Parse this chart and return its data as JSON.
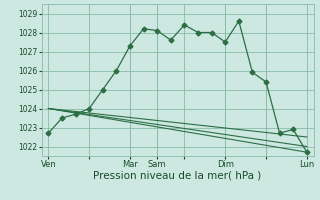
{
  "bg_color": "#cce8e0",
  "grid_color": "#88bbaa",
  "line_color": "#2d6e45",
  "xlabel": "Pression niveau de la mer( hPa )",
  "xlabel_fontsize": 7.5,
  "ylim": [
    1021.5,
    1029.5
  ],
  "yticks": [
    1022,
    1023,
    1024,
    1025,
    1026,
    1027,
    1028,
    1029
  ],
  "ytick_fontsize": 6.0,
  "xtick_labels": [
    "Ven",
    "",
    "Mar",
    "Sam",
    "",
    "Dim",
    "",
    "Lun"
  ],
  "xtick_positions": [
    0,
    3,
    6,
    8,
    10,
    13,
    16,
    19
  ],
  "xlim": [
    -0.5,
    19.5
  ],
  "series1_x": [
    0,
    1,
    2,
    3,
    4,
    5,
    6,
    7,
    8,
    9,
    10,
    11,
    12,
    13,
    14,
    15,
    16,
    17,
    18,
    19
  ],
  "series1_y": [
    1022.7,
    1023.5,
    1023.7,
    1024.0,
    1025.0,
    1026.0,
    1027.3,
    1028.2,
    1028.1,
    1027.6,
    1028.4,
    1028.0,
    1028.0,
    1027.5,
    1028.6,
    1025.9,
    1025.4,
    1022.7,
    1022.9,
    1021.7
  ],
  "series2_x": [
    0,
    19
  ],
  "series2_y": [
    1024.0,
    1021.7
  ],
  "series3_x": [
    0,
    19
  ],
  "series3_y": [
    1024.0,
    1022.0
  ],
  "series4_x": [
    0,
    19
  ],
  "series4_y": [
    1024.0,
    1022.5
  ],
  "vlines": [
    6,
    8,
    13,
    16
  ],
  "marker": "D",
  "markersize": 2.5
}
